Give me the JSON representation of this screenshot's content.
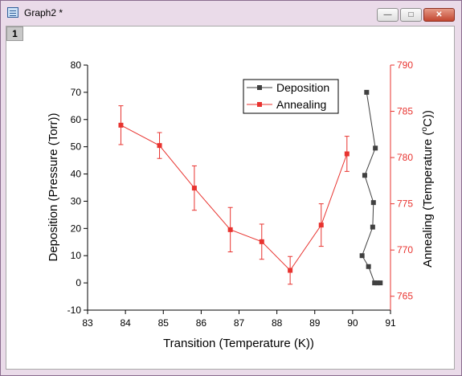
{
  "window": {
    "title": "Graph2 *",
    "layer_tab": "1",
    "btn_min": "—",
    "btn_max": "□",
    "btn_close": "✕"
  },
  "colors": {
    "deposition": "#404040",
    "annealing": "#e8332f",
    "axis": "#000000"
  },
  "chart_data": {
    "type": "line",
    "xlabel": "Transition (Temperature (K))",
    "ylabel_left": "Deposition (Pressure (Torr))",
    "ylabel_right_main": "Annealing (Temperature (",
    "ylabel_right_sup": "o",
    "ylabel_right_tail": "C))",
    "xlim": [
      83,
      91
    ],
    "ylim_left": [
      -10,
      80
    ],
    "ylim_right": [
      763.5,
      790
    ],
    "xticks": [
      "83",
      "84",
      "85",
      "86",
      "87",
      "88",
      "89",
      "90",
      "91"
    ],
    "yticks_left": [
      "-10",
      "0",
      "10",
      "20",
      "30",
      "40",
      "50",
      "60",
      "70",
      "80"
    ],
    "yticks_right": [
      "765",
      "770",
      "775",
      "780",
      "785",
      "790"
    ],
    "legend": {
      "position": "top-right",
      "entries": [
        "Deposition",
        "Annealing"
      ]
    },
    "series": [
      {
        "name": "Deposition",
        "axis": "left",
        "points": [
          {
            "x": 90.37,
            "y": 70
          },
          {
            "x": 90.6,
            "y": 49.5
          },
          {
            "x": 90.32,
            "y": 39.5
          },
          {
            "x": 90.55,
            "y": 29.5
          },
          {
            "x": 90.53,
            "y": 20.5
          },
          {
            "x": 90.25,
            "y": 10
          },
          {
            "x": 90.42,
            "y": 6
          },
          {
            "x": 90.58,
            "y": 0
          },
          {
            "x": 90.65,
            "y": 0
          },
          {
            "x": 90.73,
            "y": 0
          }
        ]
      },
      {
        "name": "Annealing",
        "axis": "right",
        "points": [
          {
            "x": 83.88,
            "y": 783.5,
            "err": 2.1
          },
          {
            "x": 84.9,
            "y": 781.3,
            "err": 1.4
          },
          {
            "x": 85.82,
            "y": 776.7,
            "err": 2.4
          },
          {
            "x": 86.77,
            "y": 772.2,
            "err": 2.4
          },
          {
            "x": 87.6,
            "y": 770.9,
            "err": 1.9
          },
          {
            "x": 88.35,
            "y": 767.8,
            "err": 1.5
          },
          {
            "x": 89.17,
            "y": 772.7,
            "err": 2.3
          },
          {
            "x": 89.85,
            "y": 780.4,
            "err": 1.9
          }
        ]
      }
    ]
  }
}
